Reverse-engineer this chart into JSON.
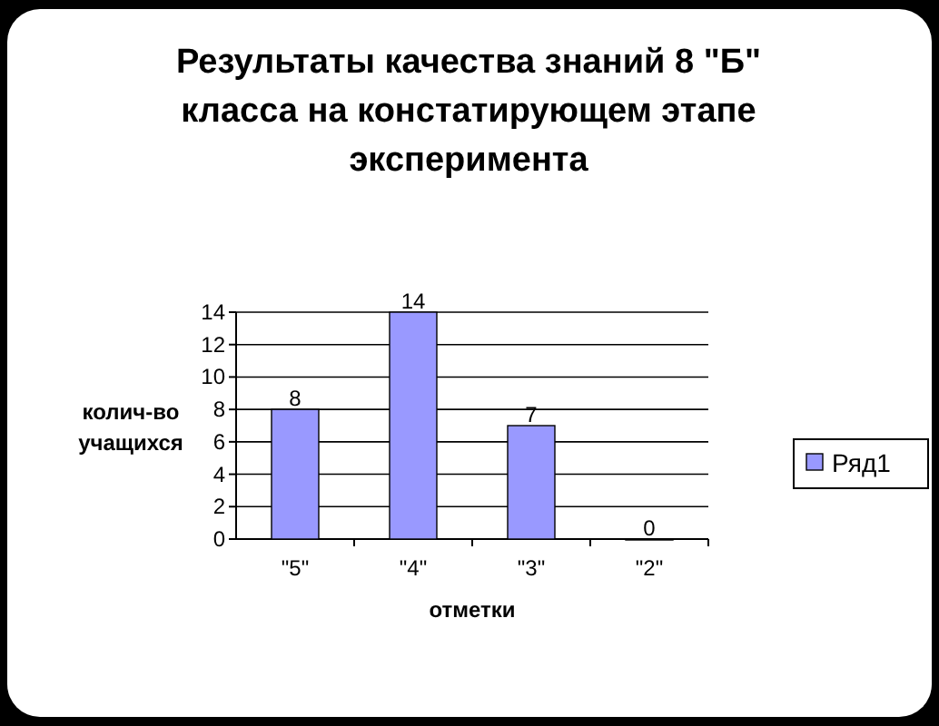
{
  "chart_data": {
    "type": "bar",
    "title": "Результаты качества знаний 8 \"Б\" класса на констатирующем этапе эксперимента",
    "xlabel": "отметки",
    "ylabel": "колич-во учащихся",
    "categories": [
      "\"5\"",
      "\"4\"",
      "\"3\"",
      "\"2\""
    ],
    "series": [
      {
        "name": "Ряд1",
        "color": "#9999ff",
        "values": [
          8,
          14,
          7,
          0
        ]
      }
    ],
    "ylim": [
      0,
      14
    ],
    "yticks": [
      0,
      2,
      4,
      6,
      8,
      10,
      12,
      14
    ],
    "grid": "y",
    "legend": "right",
    "data_labels": true
  }
}
